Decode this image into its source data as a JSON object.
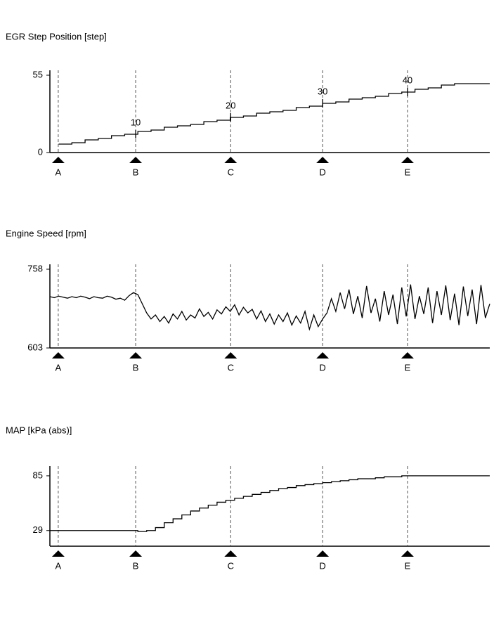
{
  "chart_data": [
    {
      "type": "line",
      "title": "EGR Step Position [step]",
      "step": true,
      "color": "#000000",
      "xlim": [
        0,
        100
      ],
      "ylim": [
        0,
        55
      ],
      "yticks": [
        0,
        55
      ],
      "x": [
        2,
        5,
        8,
        11,
        14,
        17,
        20,
        23,
        26,
        29,
        32,
        35,
        38,
        41,
        44,
        47,
        50,
        53,
        56,
        59,
        62,
        65,
        68,
        71,
        74,
        77,
        80,
        83,
        86,
        89,
        92,
        100
      ],
      "values": [
        6,
        7,
        9,
        10,
        12,
        13,
        15,
        16,
        18,
        19,
        20,
        22,
        23,
        25,
        26,
        28,
        29,
        30,
        32,
        33,
        35,
        36,
        38,
        39,
        40,
        42,
        43,
        45,
        46,
        48,
        49,
        49
      ],
      "markers": [
        {
          "label": "A",
          "x": 1.9
        },
        {
          "label": "B",
          "x": 19.5,
          "note": "10"
        },
        {
          "label": "C",
          "x": 41.1,
          "note": "20"
        },
        {
          "label": "D",
          "x": 62.0,
          "note": "30"
        },
        {
          "label": "E",
          "x": 81.3,
          "note": "40"
        }
      ]
    },
    {
      "type": "line",
      "title": "Engine Speed [rpm]",
      "step": false,
      "color": "#000000",
      "xlim": [
        0,
        100
      ],
      "ylim": [
        603,
        758
      ],
      "yticks": [
        603,
        758
      ],
      "x": [
        0,
        1,
        2,
        3,
        4,
        5,
        6,
        7,
        8,
        9,
        10,
        11,
        12,
        13,
        14,
        15,
        16,
        17,
        18,
        19,
        20,
        21,
        22,
        23,
        24,
        25,
        26,
        27,
        28,
        29,
        30,
        31,
        32,
        33,
        34,
        35,
        36,
        37,
        38,
        39,
        40,
        41,
        42,
        43,
        44,
        45,
        46,
        47,
        48,
        49,
        50,
        51,
        52,
        53,
        54,
        55,
        56,
        57,
        58,
        59,
        60,
        61,
        62,
        63,
        64,
        65,
        66,
        67,
        68,
        69,
        70,
        71,
        72,
        73,
        74,
        75,
        76,
        77,
        78,
        79,
        80,
        81,
        82,
        83,
        84,
        85,
        86,
        87,
        88,
        89,
        90,
        91,
        92,
        93,
        94,
        95,
        96,
        97,
        98,
        99,
        100
      ],
      "values": [
        704,
        702,
        705,
        703,
        701,
        704,
        702,
        705,
        703,
        700,
        704,
        702,
        701,
        705,
        703,
        699,
        701,
        697,
        706,
        712,
        708,
        690,
        672,
        660,
        668,
        655,
        665,
        652,
        670,
        660,
        675,
        658,
        668,
        662,
        680,
        665,
        673,
        660,
        678,
        670,
        684,
        675,
        688,
        668,
        683,
        672,
        679,
        660,
        676,
        655,
        670,
        650,
        668,
        655,
        672,
        648,
        666,
        652,
        675,
        640,
        668,
        645,
        660,
        672,
        700,
        675,
        712,
        680,
        718,
        670,
        705,
        662,
        725,
        672,
        700,
        655,
        715,
        668,
        708,
        650,
        722,
        665,
        728,
        660,
        705,
        670,
        722,
        652,
        715,
        668,
        726,
        658,
        710,
        648,
        724,
        666,
        718,
        650,
        727,
        662,
        690
      ],
      "markers": [
        {
          "label": "A",
          "x": 1.9
        },
        {
          "label": "B",
          "x": 19.5
        },
        {
          "label": "C",
          "x": 41.1
        },
        {
          "label": "D",
          "x": 62.0
        },
        {
          "label": "E",
          "x": 81.3
        }
      ]
    },
    {
      "type": "line",
      "title": "MAP [kPa (abs)]",
      "step": true,
      "color": "#000000",
      "xlim": [
        0,
        100
      ],
      "ylim": [
        13,
        95
      ],
      "yticks": [
        29,
        85
      ],
      "x": [
        0,
        2,
        4,
        6,
        8,
        10,
        12,
        14,
        16,
        18,
        20,
        22,
        24,
        26,
        28,
        30,
        32,
        34,
        36,
        38,
        40,
        42,
        44,
        46,
        48,
        50,
        52,
        54,
        56,
        58,
        60,
        62,
        64,
        66,
        68,
        70,
        72,
        74,
        76,
        78,
        80,
        82,
        84,
        86,
        88,
        90,
        92,
        94,
        96,
        98,
        100
      ],
      "values": [
        29,
        29,
        29,
        29,
        29,
        29,
        29,
        29,
        29,
        29,
        28,
        29,
        32,
        37,
        41,
        45,
        49,
        52,
        55,
        58,
        60,
        62,
        64,
        66,
        68,
        70,
        72,
        73,
        75,
        76,
        77,
        78,
        79,
        80,
        81,
        82,
        82,
        83,
        84,
        84,
        85,
        85,
        85,
        85,
        85,
        85,
        85,
        85,
        85,
        85,
        85
      ],
      "markers": [
        {
          "label": "A",
          "x": 1.9
        },
        {
          "label": "B",
          "x": 19.5
        },
        {
          "label": "C",
          "x": 41.1
        },
        {
          "label": "D",
          "x": 62.0
        },
        {
          "label": "E",
          "x": 81.3
        }
      ]
    }
  ]
}
